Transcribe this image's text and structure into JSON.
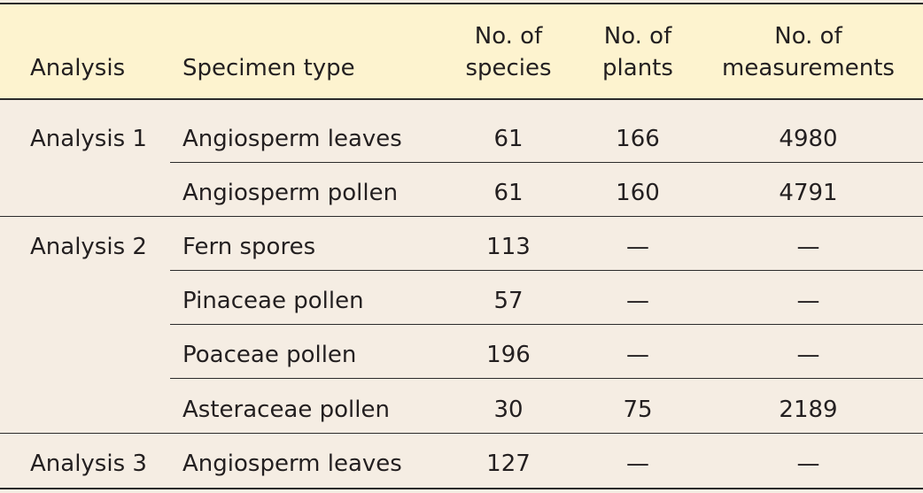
{
  "table": {
    "headers": {
      "analysis": "Analysis",
      "specimen_type": "Specimen type",
      "species_line1": "No. of",
      "species_line2": "species",
      "plants_line1": "No. of",
      "plants_line2": "plants",
      "measurements_line1": "No. of",
      "measurements_line2": "measurements"
    },
    "groups": [
      {
        "analysis": "Analysis 1"
      },
      {
        "analysis": "Analysis 2"
      },
      {
        "analysis": "Analysis 3"
      }
    ],
    "rows": [
      {
        "specimen_type": "Angiosperm leaves",
        "species": "61",
        "plants": "166",
        "measurements": "4980"
      },
      {
        "specimen_type": "Angiosperm pollen",
        "species": "61",
        "plants": "160",
        "measurements": "4791"
      },
      {
        "specimen_type": "Fern spores",
        "species": "113",
        "plants": "—",
        "measurements": "—"
      },
      {
        "specimen_type": "Pinaceae pollen",
        "species": "57",
        "plants": "—",
        "measurements": "—"
      },
      {
        "specimen_type": "Poaceae pollen",
        "species": "196",
        "plants": "—",
        "measurements": "—"
      },
      {
        "specimen_type": "Asteraceae pollen",
        "species": "30",
        "plants": "75",
        "measurements": "2189"
      },
      {
        "specimen_type": "Angiosperm leaves",
        "species": "127",
        "plants": "—",
        "measurements": "—"
      }
    ],
    "colors": {
      "header_background": "#fdf3cf",
      "body_background": "#f5ede3",
      "rule": "#2b2b2b"
    }
  }
}
